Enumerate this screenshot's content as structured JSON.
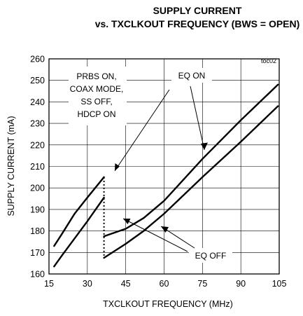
{
  "chart_data": {
    "type": "line",
    "title": "SUPPLY CURRENT",
    "subtitle": "vs. TXCLKOUT FREQUENCY (BWS = OPEN)",
    "xlabel": "TXCLKOUT FREQUENCY (MHz)",
    "ylabel": "SUPPLY CURRENT (mA)",
    "xlim": [
      15,
      105
    ],
    "ylim": [
      160,
      260
    ],
    "xticks": [
      "15",
      "30",
      "45",
      "60",
      "75",
      "90",
      "105"
    ],
    "yticks": [
      "160",
      "170",
      "180",
      "190",
      "200",
      "210",
      "220",
      "230",
      "240",
      "250",
      "260"
    ],
    "grid": true,
    "code": "toc02",
    "condition_lines": [
      "PRBS ON,",
      "COAX MODE,",
      "SS OFF,",
      "HDCP ON"
    ],
    "annotations": {
      "upper": "EQ ON",
      "lower": "EQ OFF"
    },
    "series": [
      {
        "name": "EQ ON",
        "segments": [
          {
            "x": [
              17,
              20,
              25,
              30,
              36.5
            ],
            "y": [
              173,
              178.5,
              188,
              195.5,
              205
            ]
          },
          {
            "x": [
              36.5,
              45,
              52,
              60,
              75,
              90,
              104.5
            ],
            "y": [
              177.5,
              181,
              186,
              194,
              213.5,
              231.5,
              248
            ]
          }
        ]
      },
      {
        "name": "EQ OFF",
        "segments": [
          {
            "x": [
              17,
              20,
              25,
              30,
              36.5
            ],
            "y": [
              163.5,
              168.5,
              176.5,
              184.5,
              195.5
            ]
          },
          {
            "x": [
              36.5,
              45,
              52,
              60,
              75,
              90,
              104.5
            ],
            "y": [
              167.5,
              174,
              180,
              188,
              205,
              221.5,
              238
            ]
          }
        ]
      }
    ],
    "dotted_transition": {
      "x": 36.5,
      "y": [
        167.5,
        205
      ]
    }
  }
}
